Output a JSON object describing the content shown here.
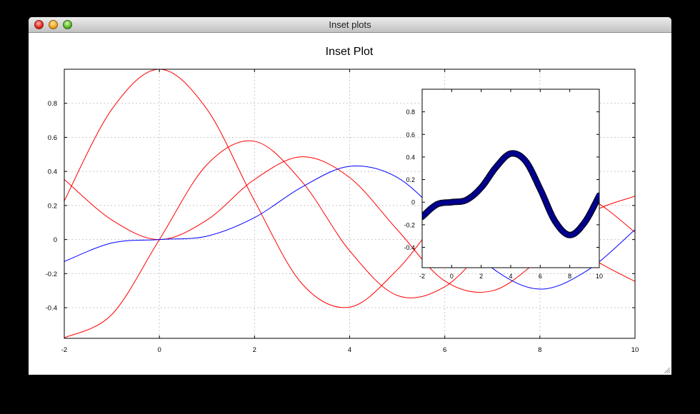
{
  "window": {
    "title": "Inset plots"
  },
  "chart_data": [
    {
      "type": "line",
      "title": "Inset Plot",
      "xlabel": "",
      "ylabel": "",
      "xlim": [
        -2,
        10
      ],
      "ylim": [
        -0.58,
        1.0
      ],
      "xticks": [
        "-2",
        "0",
        "2",
        "4",
        "6",
        "8",
        "10"
      ],
      "yticks": [
        "-0.4",
        "-0.2",
        "0",
        "0.2",
        "0.4",
        "0.6",
        "0.8"
      ],
      "grid": true,
      "series": [
        {
          "color": "#ff0000",
          "x": [
            -2,
            -1,
            0,
            1,
            2,
            3,
            4,
            5,
            6,
            7,
            8,
            9,
            10
          ],
          "values": [
            0.227,
            0.765,
            1.0,
            0.765,
            0.227,
            -0.26,
            -0.397,
            -0.178,
            0.151,
            0.3,
            0.172,
            -0.09,
            -0.246
          ]
        },
        {
          "color": "#ff0000",
          "x": [
            -2,
            -1,
            0,
            1,
            2,
            3,
            4,
            5,
            6,
            7,
            8,
            9,
            10
          ],
          "values": [
            -0.577,
            -0.44,
            0.0,
            0.44,
            0.577,
            0.339,
            -0.066,
            -0.328,
            -0.277,
            -0.005,
            0.235,
            0.245,
            0.043
          ]
        },
        {
          "color": "#ff0000",
          "x": [
            -2,
            -1,
            0,
            1,
            2,
            3,
            4,
            5,
            6,
            7,
            8,
            9,
            10
          ],
          "values": [
            0.353,
            0.115,
            0.0,
            0.115,
            0.353,
            0.486,
            0.364,
            0.058,
            -0.243,
            -0.301,
            -0.113,
            0.145,
            0.255
          ]
        },
        {
          "color": "#0000ff",
          "x": [
            -2,
            -1,
            0,
            1,
            2,
            3,
            4,
            5,
            6,
            7,
            8,
            9,
            10
          ],
          "values": [
            -0.129,
            -0.02,
            0.0,
            0.02,
            0.129,
            0.309,
            0.43,
            0.365,
            0.115,
            -0.168,
            -0.291,
            -0.181,
            0.058
          ]
        }
      ]
    },
    {
      "type": "scatter",
      "title": "",
      "xlabel": "",
      "ylabel": "",
      "xlim": [
        -2,
        10
      ],
      "ylim": [
        -0.58,
        1.0
      ],
      "xticks": [
        "-2",
        "0",
        "2",
        "4",
        "6",
        "8",
        "10"
      ],
      "yticks": [
        "-0.4",
        "-0.2",
        "0",
        "0.2",
        "0.4",
        "0.6",
        "0.8"
      ],
      "grid": false,
      "series": [
        {
          "color": "#0000cc",
          "edge_color": "#000000",
          "marker": "circle",
          "line_color": "#0000ff",
          "x": [
            -2,
            -1,
            0,
            1,
            2,
            3,
            4,
            5,
            6,
            7,
            8,
            9,
            10
          ],
          "values": [
            -0.129,
            -0.02,
            0.0,
            0.02,
            0.129,
            0.309,
            0.43,
            0.365,
            0.115,
            -0.168,
            -0.291,
            -0.181,
            0.058
          ]
        }
      ]
    }
  ]
}
